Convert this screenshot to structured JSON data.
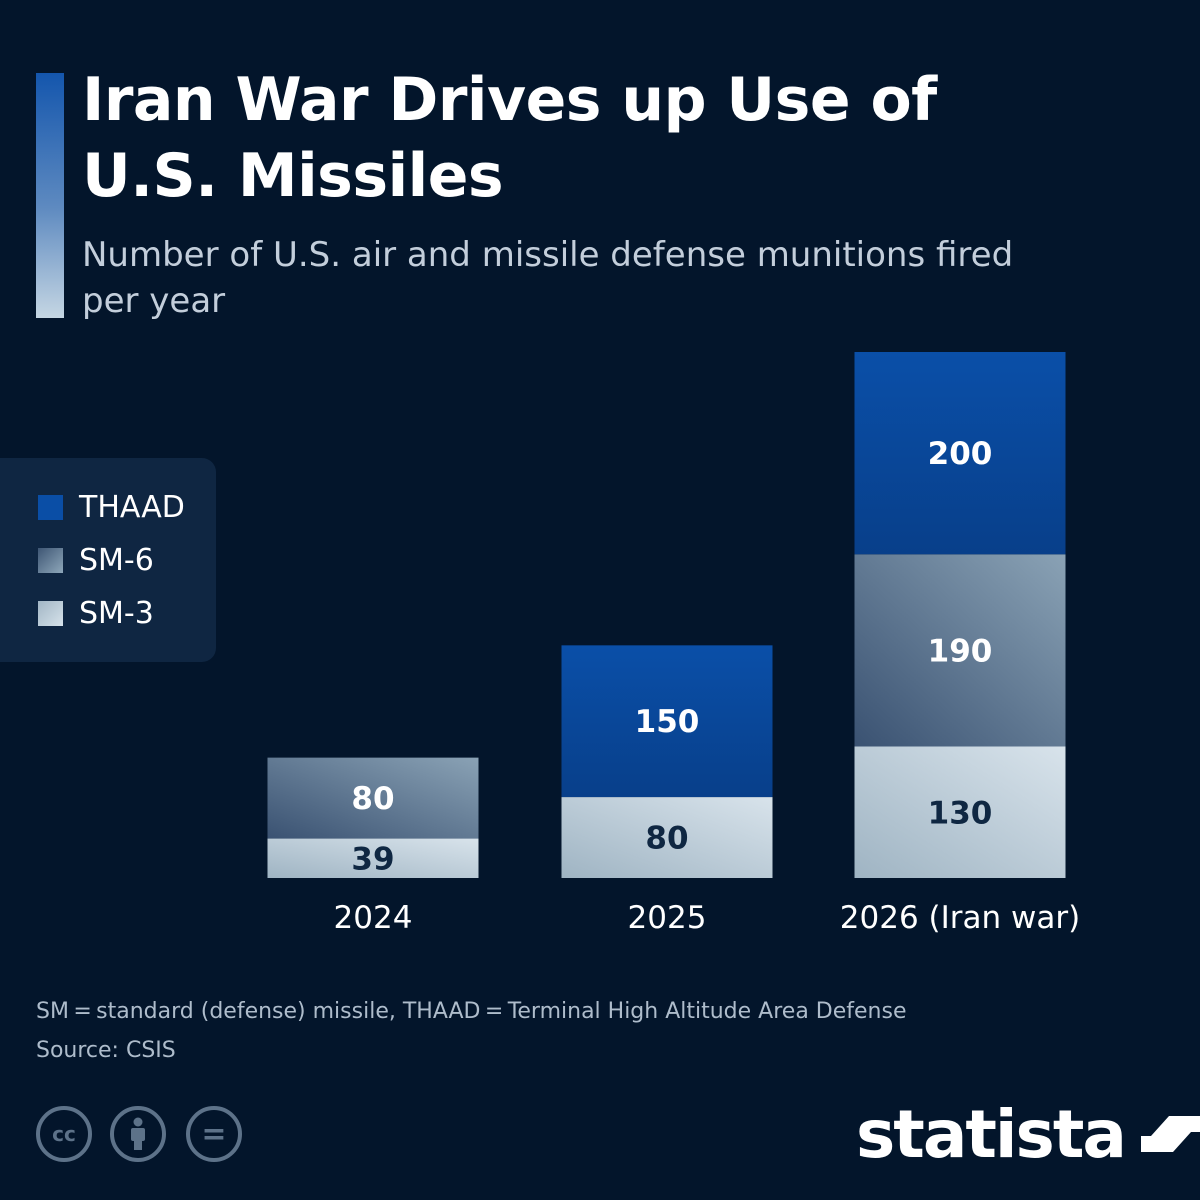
{
  "header": {
    "title": "Iran War Drives up Use of U.S. Missiles",
    "subtitle": "Number of U.S. air and missile defense munitions fired per year"
  },
  "legend": {
    "items": [
      {
        "label": "THAAD",
        "color": "#0a4ea6"
      },
      {
        "label": "SM-6",
        "color": "#6f879e"
      },
      {
        "label": "SM-3",
        "color": "#c3d3de"
      }
    ]
  },
  "chart_data": {
    "type": "bar",
    "stacked": true,
    "categories": [
      "2024",
      "2025",
      "2026 (Iran war)"
    ],
    "series": [
      {
        "name": "SM-3",
        "values": [
          39,
          80,
          130
        ],
        "color": "#c3d3de"
      },
      {
        "name": "SM-6",
        "values": [
          80,
          0,
          190
        ],
        "color": "#6f879e"
      },
      {
        "name": "THAAD",
        "values": [
          0,
          150,
          200
        ],
        "color": "#0a4ea6"
      }
    ],
    "ylim": [
      0,
      520
    ],
    "grid": false,
    "legend_position": "left"
  },
  "footer": {
    "note": "SM = standard (defense) missile, THAAD = Terminal High Altitude Area Defense",
    "source": "Source: CSIS",
    "license_icons": [
      {
        "name": "cc-icon",
        "glyph": "cc"
      },
      {
        "name": "attribution-icon",
        "glyph": "i"
      },
      {
        "name": "no-derivatives-icon",
        "glyph": "="
      }
    ],
    "brand": "statista"
  }
}
